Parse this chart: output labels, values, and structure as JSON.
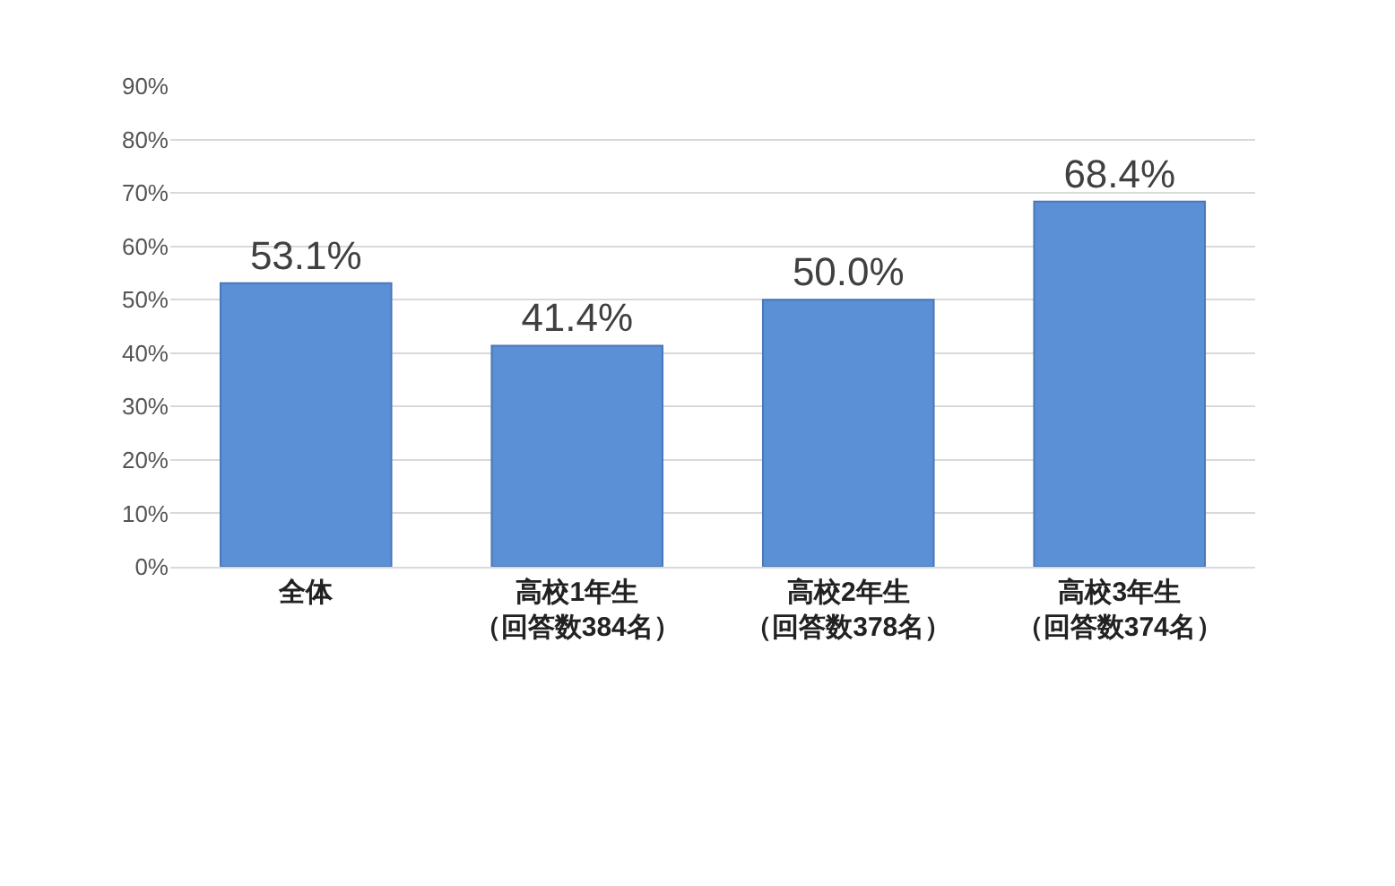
{
  "chart_data": {
    "type": "bar",
    "categories": [
      "全体",
      "高校1年生（回答数384名）",
      "高校2年生（回答数378名）",
      "高校3年生（回答数374名）"
    ],
    "values": [
      53.1,
      41.4,
      50.0,
      68.4
    ],
    "value_labels": [
      "53.1%",
      "41.4%",
      "50.0%",
      "68.4%"
    ],
    "color": "#5b8fd6",
    "ylim": [
      0,
      90
    ],
    "yticks": [
      {
        "value": 0,
        "label": "0%"
      },
      {
        "value": 10,
        "label": "10%"
      },
      {
        "value": 20,
        "label": "20%"
      },
      {
        "value": 30,
        "label": "30%"
      },
      {
        "value": 40,
        "label": "40%"
      },
      {
        "value": 50,
        "label": "50%"
      },
      {
        "value": 60,
        "label": "60%"
      },
      {
        "value": 70,
        "label": "70%"
      },
      {
        "value": 80,
        "label": "80%"
      },
      {
        "value": 90,
        "label": "90%"
      }
    ],
    "grid": "y",
    "legend": false
  }
}
